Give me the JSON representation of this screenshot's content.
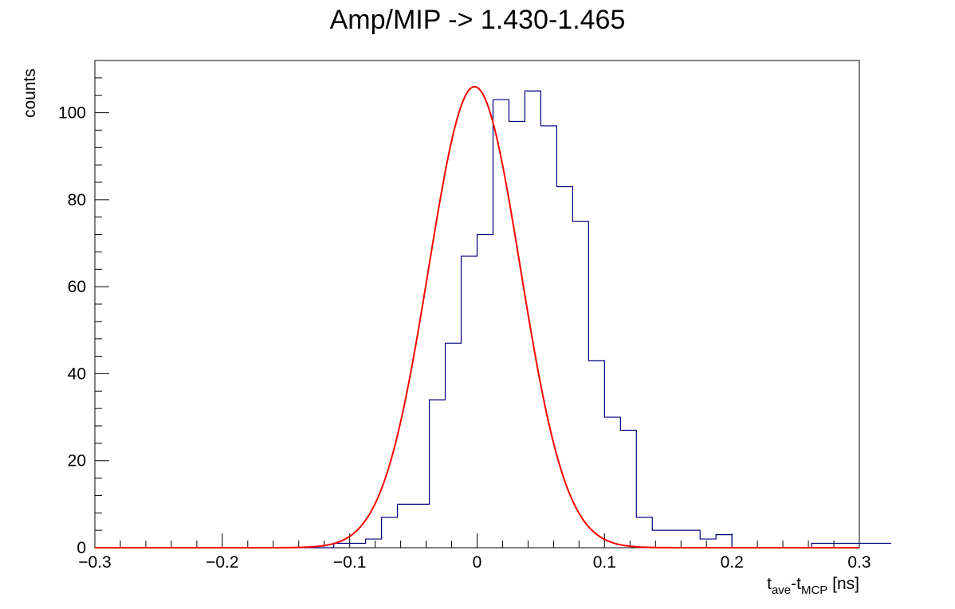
{
  "chart_data": {
    "type": "histogram",
    "title": "Amp/MIP -> 1.430-1.465",
    "xlabel": {
      "base1": "t",
      "sub1": "ave",
      "mid": "-t",
      "sub2": "MCP",
      "unit": " [ns]"
    },
    "ylabel": "counts",
    "xlim": [
      -0.3,
      0.3
    ],
    "ylim": [
      0,
      112
    ],
    "xticks": [
      -0.3,
      -0.2,
      -0.1,
      0,
      0.1,
      0.2,
      0.3
    ],
    "xtick_labels": [
      "−0.3",
      "−0.2",
      "−0.1",
      "0",
      "0.1",
      "0.2",
      "0.3"
    ],
    "yticks": [
      0,
      20,
      40,
      60,
      80,
      100
    ],
    "ytick_labels": [
      "0",
      "20",
      "40",
      "60",
      "80",
      "100"
    ],
    "bin_width": 0.0125,
    "bins_x_start": -0.3,
    "counts": [
      0,
      0,
      0,
      0,
      0,
      0,
      0,
      0,
      0,
      0,
      0,
      0,
      0,
      0,
      0,
      1,
      1,
      2,
      7,
      10,
      10,
      34,
      47,
      67,
      72,
      103,
      98,
      105,
      97,
      83,
      75,
      43,
      30,
      27,
      7,
      4,
      4,
      4,
      2,
      3,
      0,
      0,
      0,
      0,
      0,
      1,
      1,
      1,
      1,
      1
    ],
    "fit": {
      "type": "gaussian",
      "amplitude": 106,
      "mean": -0.002,
      "sigma": 0.036
    },
    "colors": {
      "histogram": "#000080",
      "fit": "#ff0000",
      "axis": "#000000"
    },
    "grid": false
  }
}
